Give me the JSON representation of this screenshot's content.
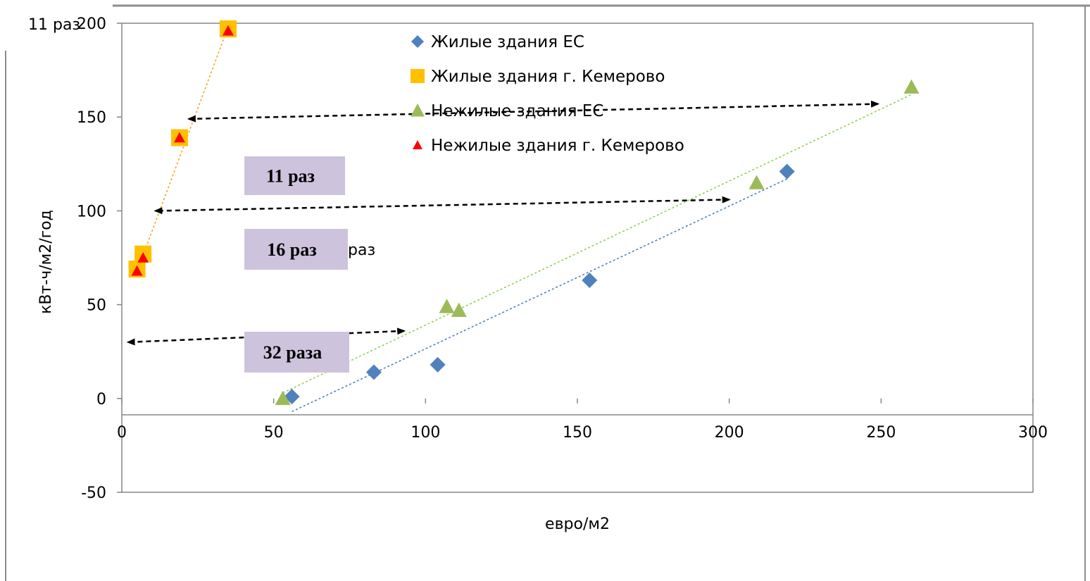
{
  "chart_data": {
    "type": "scatter",
    "xlabel": "евро/м2",
    "ylabel": "кВт-ч/м2/год",
    "xlim": [
      0,
      300
    ],
    "ylim": [
      -50,
      200
    ],
    "corner_label": "11 раз",
    "x_ticks": [
      "0",
      "50",
      "100",
      "150",
      "200",
      "250",
      "300"
    ],
    "y_ticks": [
      "-50",
      "0",
      "50",
      "100",
      "150",
      "200"
    ],
    "grid": false,
    "legend_position": "top-center",
    "series": [
      {
        "name": "Жилые здания ЕС",
        "marker": "diamond",
        "color": "#4F81BD",
        "points": [
          [
            56,
            1
          ],
          [
            83,
            14
          ],
          [
            104,
            18
          ],
          [
            154,
            63
          ],
          [
            219,
            121
          ]
        ],
        "trendline": [
          [
            56,
            -7
          ],
          [
            219,
            117
          ]
        ]
      },
      {
        "name": "Жилые здания г. Кемерово",
        "marker": "square",
        "color": "#FFC000",
        "points": [
          [
            5,
            69
          ],
          [
            7,
            77
          ],
          [
            19,
            139
          ],
          [
            35,
            197
          ]
        ],
        "trendline": [
          [
            6,
            72
          ],
          [
            35,
            198
          ]
        ]
      },
      {
        "name": "Нежилые здания ЕС",
        "marker": "triangle",
        "color": "#9BBB59",
        "points": [
          [
            53,
            0
          ],
          [
            107,
            49
          ],
          [
            111,
            47
          ],
          [
            209,
            115
          ],
          [
            260,
            166
          ]
        ],
        "trendline": [
          [
            53,
            3
          ],
          [
            260,
            162
          ]
        ]
      },
      {
        "name": "Нежилые здания г. Кемерово",
        "marker": "triangle",
        "color": "#FF0000",
        "points": [
          [
            5,
            68
          ],
          [
            7,
            75
          ],
          [
            19,
            139
          ],
          [
            35,
            196
          ]
        ]
      }
    ],
    "annotations": [
      {
        "label": "11 раз",
        "from": [
          22,
          149
        ],
        "to": [
          249,
          157
        ]
      },
      {
        "label": "16 раз",
        "from": [
          11,
          100
        ],
        "to": [
          200,
          106
        ],
        "ghost_text": "раз"
      },
      {
        "label": "32 раза",
        "from": [
          2,
          30
        ],
        "to": [
          93,
          36
        ]
      }
    ]
  }
}
